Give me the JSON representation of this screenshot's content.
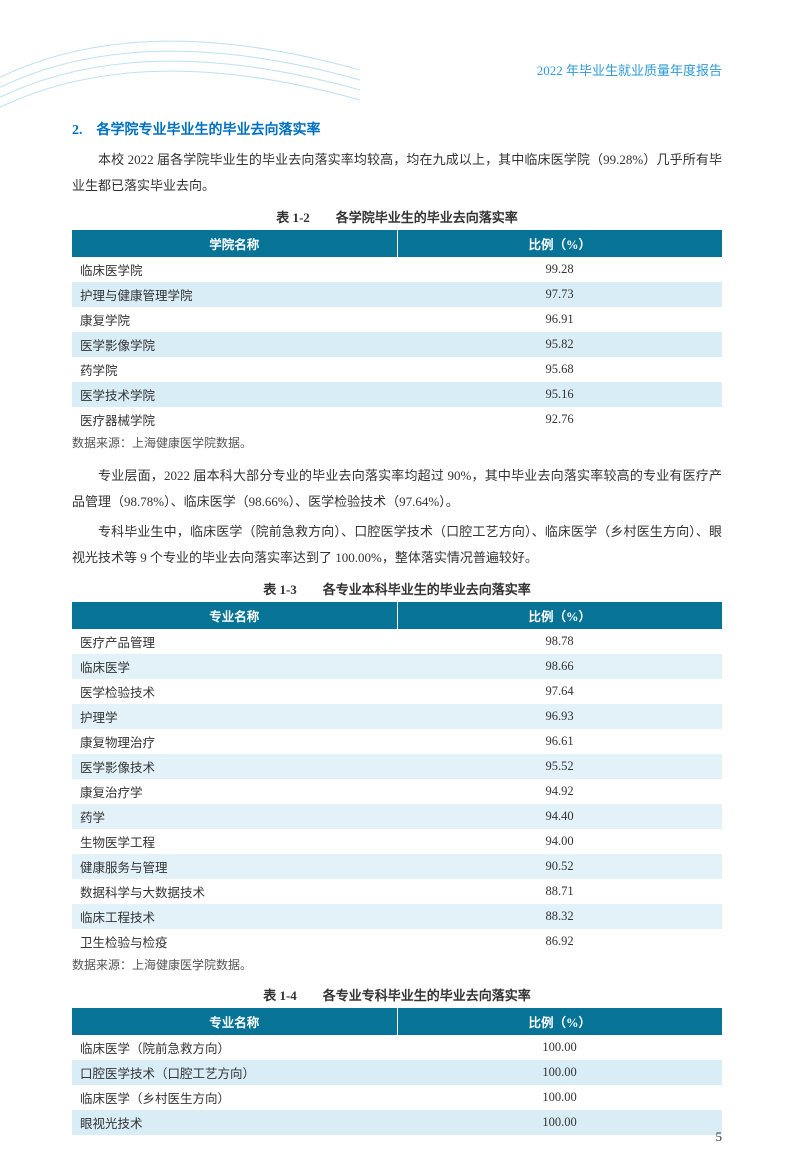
{
  "header": {
    "title": "2022 年毕业生就业质量年度报告"
  },
  "section": {
    "heading": "2.　各学院专业毕业生的毕业去向落实率",
    "para1": "本校 2022 届各学院毕业生的毕业去向落实率均较高，均在九成以上，其中临床医学院（99.28%）几乎所有毕业生都已落实毕业去向。",
    "para2": "专业层面，2022 届本科大部分专业的毕业去向落实率均超过 90%，其中毕业去向落实率较高的专业有医疗产品管理（98.78%）、临床医学（98.66%）、医学检验技术（97.64%）。",
    "para3": "专科毕业生中，临床医学（院前急救方向）、口腔医学技术（口腔工艺方向）、临床医学（乡村医生方向）、眼视光技术等 9 个专业的毕业去向落实率达到了 100.00%，整体落实情况普遍较好。"
  },
  "source_note": "数据来源：上海健康医学院数据。",
  "table_style": {
    "header_bg": "#077396",
    "header_fg": "#ffffff",
    "row_odd_bg": "#ffffff",
    "row_even_bg": "#d9edf7",
    "font_size": 12.5
  },
  "table_1_2": {
    "caption": "表 1-2　　各学院毕业生的毕业去向落实率",
    "columns": [
      "学院名称",
      "比例（%）"
    ],
    "rows": [
      [
        "临床医学院",
        "99.28"
      ],
      [
        "护理与健康管理学院",
        "97.73"
      ],
      [
        "康复学院",
        "96.91"
      ],
      [
        "医学影像学院",
        "95.82"
      ],
      [
        "药学院",
        "95.68"
      ],
      [
        "医学技术学院",
        "95.16"
      ],
      [
        "医疗器械学院",
        "92.76"
      ]
    ]
  },
  "table_1_3": {
    "caption": "表 1-3　　各专业本科毕业生的毕业去向落实率",
    "columns": [
      "专业名称",
      "比例（%）"
    ],
    "rows": [
      [
        "医疗产品管理",
        "98.78"
      ],
      [
        "临床医学",
        "98.66"
      ],
      [
        "医学检验技术",
        "97.64"
      ],
      [
        "护理学",
        "96.93"
      ],
      [
        "康复物理治疗",
        "96.61"
      ],
      [
        "医学影像技术",
        "95.52"
      ],
      [
        "康复治疗学",
        "94.92"
      ],
      [
        "药学",
        "94.40"
      ],
      [
        "生物医学工程",
        "94.00"
      ],
      [
        "健康服务与管理",
        "90.52"
      ],
      [
        "数据科学与大数据技术",
        "88.71"
      ],
      [
        "临床工程技术",
        "88.32"
      ],
      [
        "卫生检验与检疫",
        "86.92"
      ]
    ]
  },
  "table_1_4": {
    "caption": "表 1-4　　各专业专科毕业生的毕业去向落实率",
    "columns": [
      "专业名称",
      "比例（%）"
    ],
    "rows": [
      [
        "临床医学（院前急救方向）",
        "100.00"
      ],
      [
        "口腔医学技术（口腔工艺方向）",
        "100.00"
      ],
      [
        "临床医学（乡村医生方向）",
        "100.00"
      ],
      [
        "眼视光技术",
        "100.00"
      ]
    ]
  },
  "page_number": "5"
}
